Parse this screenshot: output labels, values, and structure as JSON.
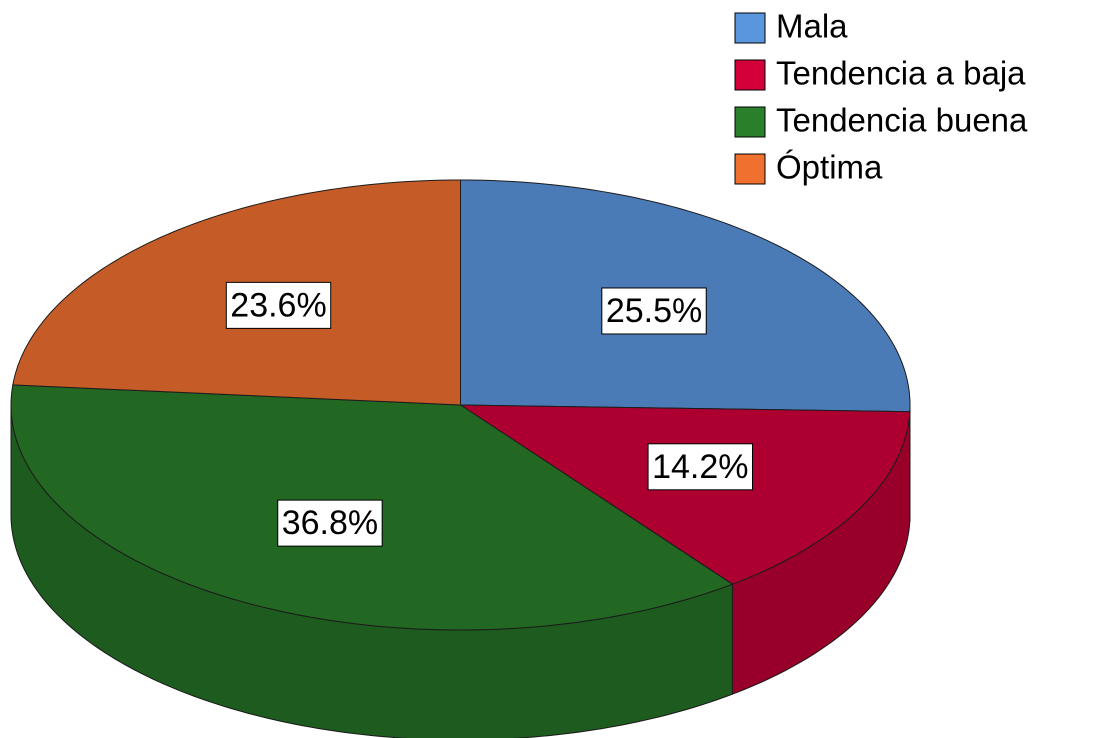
{
  "chart_data": {
    "type": "pie",
    "categories": [
      "Mala",
      "Tendencia a baja",
      "Tendencia buena",
      "Óptima"
    ],
    "values": [
      25.5,
      14.2,
      36.8,
      23.6
    ],
    "value_labels": [
      "25.5%",
      "14.2%",
      "36.8%",
      "23.6%"
    ],
    "colors": [
      "#5a96de",
      "#d3003a",
      "#2a7f2a",
      "#f07030"
    ],
    "legend": "top-right"
  }
}
